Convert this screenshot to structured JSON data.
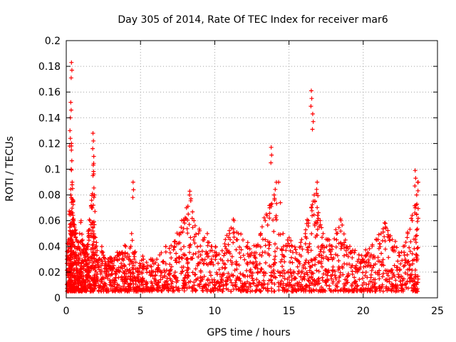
{
  "chart_data": {
    "type": "scatter",
    "title": "Day 305 of 2014, Rate Of TEC Index for receiver mar6",
    "xlabel": "GPS time / hours",
    "ylabel": "ROTI / TECUs",
    "xlim": [
      0,
      25
    ],
    "ylim": [
      0,
      0.2
    ],
    "x_ticks": [
      0,
      5,
      10,
      15,
      20,
      25
    ],
    "x_tick_labels": [
      "0",
      "5",
      "10",
      "15",
      "20",
      "25"
    ],
    "y_ticks": [
      0,
      0.02,
      0.04,
      0.06,
      0.08,
      0.1,
      0.12,
      0.14,
      0.16,
      0.18,
      0.2
    ],
    "y_tick_labels": [
      "0",
      "0.02",
      "0.04",
      "0.06",
      "0.08",
      "0.1",
      "0.12",
      "0.14",
      "0.16",
      "0.18",
      "0.2"
    ],
    "grid": true,
    "marker": "+",
    "marker_color": "#ff0000",
    "series": [
      {
        "name": "ROTI",
        "x": [
          0.05,
          0.12,
          0.2,
          0.28,
          0.3,
          0.33,
          0.35,
          0.4,
          0.45,
          0.5,
          0.55,
          0.6,
          0.7,
          0.8,
          0.9,
          1.0,
          1.1,
          1.2,
          1.3,
          1.4,
          1.5,
          1.6,
          1.7,
          1.8,
          1.85,
          1.9,
          2.0,
          2.2,
          2.4,
          2.6,
          2.8,
          3.0,
          3.2,
          3.4,
          3.6,
          3.8,
          4.0,
          4.2,
          4.4,
          4.6,
          4.8,
          5.0,
          5.2,
          5.5,
          5.8,
          6.1,
          6.4,
          6.7,
          7.0,
          7.3,
          7.6,
          7.9,
          8.1,
          8.3,
          8.6,
          8.9,
          9.2,
          9.5,
          9.8,
          10.1,
          10.4,
          10.7,
          11.0,
          11.3,
          11.6,
          11.9,
          12.2,
          12.5,
          12.8,
          13.1,
          13.4,
          13.7,
          14.0,
          14.3,
          14.6,
          14.9,
          15.2,
          15.5,
          15.8,
          16.1,
          16.3,
          16.5,
          16.7,
          16.9,
          17.1,
          17.3,
          17.6,
          17.9,
          18.2,
          18.5,
          18.8,
          19.1,
          19.4,
          19.7,
          20.0,
          20.3,
          20.6,
          20.9,
          21.2,
          21.5,
          21.8,
          22.1,
          22.4,
          22.7,
          23.0,
          23.3,
          23.5,
          23.6,
          23.7
        ],
        "y": [
          0.03,
          0.045,
          0.065,
          0.05,
          0.08,
          0.1,
          0.12,
          0.09,
          0.075,
          0.06,
          0.055,
          0.05,
          0.045,
          0.04,
          0.05,
          0.06,
          0.045,
          0.04,
          0.035,
          0.04,
          0.05,
          0.06,
          0.07,
          0.095,
          0.11,
          0.08,
          0.04,
          0.03,
          0.035,
          0.025,
          0.03,
          0.03,
          0.025,
          0.03,
          0.035,
          0.03,
          0.04,
          0.03,
          0.05,
          0.035,
          0.02,
          0.025,
          0.03,
          0.025,
          0.03,
          0.03,
          0.035,
          0.04,
          0.035,
          0.04,
          0.05,
          0.06,
          0.07,
          0.08,
          0.06,
          0.05,
          0.045,
          0.05,
          0.04,
          0.035,
          0.03,
          0.04,
          0.05,
          0.06,
          0.05,
          0.045,
          0.04,
          0.035,
          0.04,
          0.05,
          0.06,
          0.07,
          0.08,
          0.09,
          0.05,
          0.045,
          0.04,
          0.035,
          0.04,
          0.05,
          0.06,
          0.07,
          0.08,
          0.09,
          0.06,
          0.05,
          0.045,
          0.04,
          0.05,
          0.06,
          0.045,
          0.04,
          0.035,
          0.03,
          0.03,
          0.035,
          0.04,
          0.045,
          0.05,
          0.055,
          0.045,
          0.04,
          0.035,
          0.04,
          0.05,
          0.06,
          0.07,
          0.08,
          0.09
        ],
        "peaks": [
          {
            "x": 0.35,
            "y": 0.183
          },
          {
            "x": 0.3,
            "y": 0.152
          },
          {
            "x": 0.25,
            "y": 0.13
          },
          {
            "x": 1.8,
            "y": 0.128
          },
          {
            "x": 16.5,
            "y": 0.161
          },
          {
            "x": 16.6,
            "y": 0.143
          },
          {
            "x": 13.8,
            "y": 0.117
          },
          {
            "x": 4.5,
            "y": 0.09
          },
          {
            "x": 23.5,
            "y": 0.099
          }
        ]
      }
    ]
  }
}
